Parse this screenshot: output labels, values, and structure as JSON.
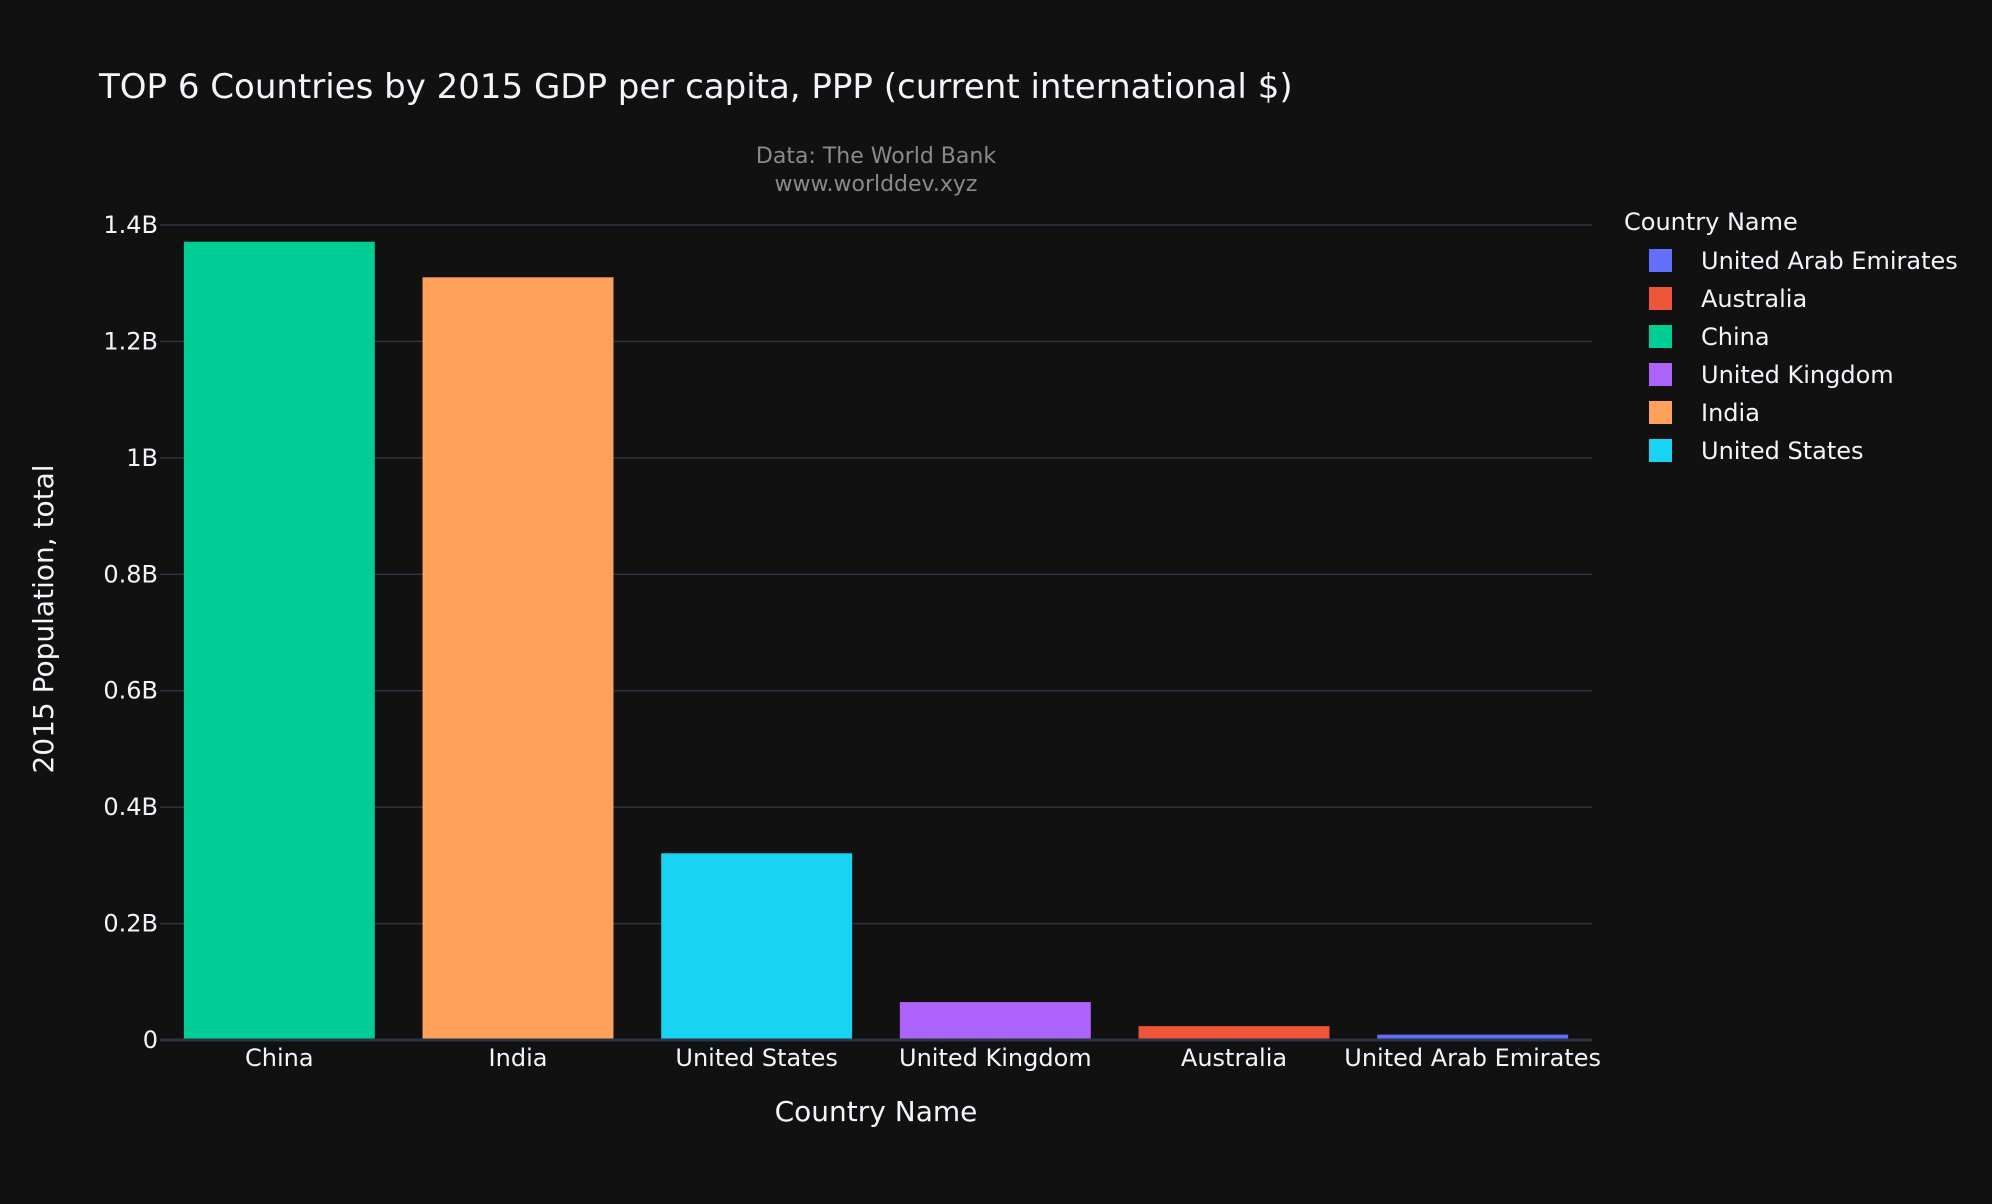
{
  "chart_data": {
    "type": "bar",
    "title": "TOP 6 Countries by 2015 GDP per capita, PPP (current international $)",
    "annotation": [
      "Data: The World Bank",
      "www.worlddev.xyz"
    ],
    "xlabel": "Country Name",
    "ylabel": "2015 Population, total",
    "categories": [
      "China",
      "India",
      "United States",
      "United Kingdom",
      "Australia",
      "United Arab Emirates"
    ],
    "values": [
      1371220000,
      1310152403,
      320738994,
      65128861,
      23815995,
      9262896
    ],
    "colors": [
      "#00cc96",
      "#ffa15a",
      "#19d3f3",
      "#ab63fa",
      "#ef553b",
      "#636efa"
    ],
    "ylim": [
      0,
      1400000000
    ],
    "yticks": [
      0,
      200000000,
      400000000,
      600000000,
      800000000,
      1000000000,
      1200000000,
      1400000000
    ],
    "ytick_labels": [
      "0",
      "0.2B",
      "0.4B",
      "0.6B",
      "0.8B",
      "1B",
      "1.2B",
      "1.4B"
    ],
    "grid": true,
    "legend": {
      "title": "Country Name",
      "placement": "right",
      "entries": [
        {
          "name": "United Arab Emirates",
          "color": "#636efa"
        },
        {
          "name": "Australia",
          "color": "#ef553b"
        },
        {
          "name": "China",
          "color": "#00cc96"
        },
        {
          "name": "United Kingdom",
          "color": "#ab63fa"
        },
        {
          "name": "India",
          "color": "#ffa15a"
        },
        {
          "name": "United States",
          "color": "#19d3f3"
        }
      ]
    }
  }
}
